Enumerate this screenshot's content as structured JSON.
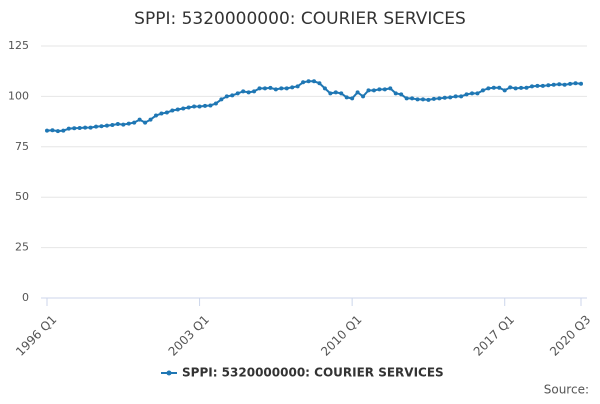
{
  "chart_data": {
    "type": "line",
    "title": "SPPI: 5320000000: COURIER SERVICES",
    "categories": [
      "1996 Q1",
      null,
      null,
      null,
      null,
      null,
      null,
      null,
      null,
      null,
      null,
      null,
      null,
      null,
      null,
      null,
      null,
      null,
      null,
      null,
      null,
      null,
      null,
      null,
      null,
      null,
      null,
      null,
      "2003 Q1",
      null,
      null,
      null,
      null,
      null,
      null,
      null,
      null,
      null,
      null,
      null,
      null,
      null,
      null,
      null,
      null,
      null,
      null,
      null,
      null,
      null,
      null,
      null,
      null,
      null,
      null,
      null,
      "2010 Q1",
      null,
      null,
      null,
      null,
      null,
      null,
      null,
      null,
      null,
      null,
      null,
      null,
      null,
      null,
      null,
      null,
      null,
      null,
      null,
      null,
      null,
      null,
      null,
      null,
      null,
      null,
      null,
      "2017 Q1",
      null,
      null,
      null,
      null,
      null,
      null,
      null,
      null,
      null,
      null,
      null,
      null,
      null,
      "2020 Q3"
    ],
    "series": [
      {
        "name": "SPPI: 5320000000: COURIER SERVICES",
        "color": "#1f77b4",
        "values": [
          83,
          83.2,
          82.8,
          83,
          84,
          84.2,
          84.3,
          84.5,
          84.5,
          85,
          85.2,
          85.5,
          85.8,
          86.3,
          86,
          86.5,
          87,
          88.5,
          87,
          88.5,
          90.5,
          91.5,
          92,
          93,
          93.5,
          94,
          94.5,
          95,
          95,
          95.3,
          95.5,
          96.5,
          98.5,
          100,
          100.5,
          101.5,
          102.5,
          102,
          102.5,
          104,
          104,
          104.2,
          103.5,
          104,
          104,
          104.5,
          105,
          107,
          107.5,
          107.5,
          106.5,
          104,
          101.5,
          102,
          101.5,
          99.5,
          99,
          102,
          100,
          103,
          103,
          103.5,
          103.5,
          104,
          101.5,
          101,
          99,
          99,
          98.5,
          98.5,
          98.3,
          98.8,
          99,
          99.3,
          99.5,
          100,
          100,
          101,
          101.5,
          101.5,
          103,
          104,
          104.3,
          104.3,
          103,
          104.5,
          104,
          104.2,
          104.3,
          105,
          105.2,
          105.2,
          105.5,
          105.8,
          106,
          105.8,
          106.2,
          106.5,
          106.3
        ]
      }
    ],
    "ylim": [
      0,
      125
    ],
    "yticks": [
      0,
      25,
      50,
      75,
      100,
      125
    ],
    "grid": true,
    "source": "Source:"
  }
}
